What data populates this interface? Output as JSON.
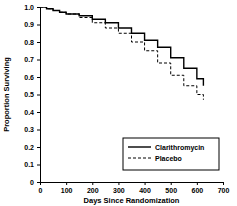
{
  "chart_data": {
    "type": "line",
    "x_label": "Days Since Randomization",
    "y_label": "Proportion Surviving",
    "x": [
      0,
      25,
      50,
      75,
      100,
      150,
      200,
      250,
      300,
      350,
      400,
      450,
      500,
      550,
      600,
      625
    ],
    "series": [
      {
        "name": "Clarithromycin",
        "color": "#000000",
        "line_style": "solid",
        "values": [
          1.0,
          0.99,
          0.98,
          0.97,
          0.96,
          0.95,
          0.93,
          0.91,
          0.88,
          0.85,
          0.81,
          0.77,
          0.71,
          0.65,
          0.59,
          0.55
        ]
      },
      {
        "name": "Placebo",
        "color": "#000000",
        "line_style": "dashed",
        "values": [
          1.0,
          0.99,
          0.98,
          0.97,
          0.96,
          0.94,
          0.91,
          0.88,
          0.85,
          0.8,
          0.75,
          0.68,
          0.61,
          0.55,
          0.5,
          0.47
        ]
      }
    ],
    "xlim": [
      0,
      700
    ],
    "xticks": [
      0,
      100,
      200,
      300,
      400,
      500,
      600,
      700
    ],
    "ylim": [
      0,
      1
    ],
    "yticks": [
      0,
      0.1,
      0.2,
      0.3,
      0.4,
      0.5,
      0.6,
      0.7,
      0.8,
      0.9,
      {
        "value": 1,
        "label": "1.0"
      }
    ],
    "legend": "lower right",
    "grid": false
  }
}
